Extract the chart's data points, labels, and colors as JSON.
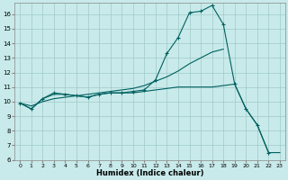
{
  "xlabel": "Humidex (Indice chaleur)",
  "bg_color": "#c8eaea",
  "grid_color": "#a0c8c8",
  "line_color": "#006060",
  "xlim_min": -0.5,
  "xlim_max": 23.5,
  "ylim_min": 6,
  "ylim_max": 16.8,
  "xticks": [
    0,
    1,
    2,
    3,
    4,
    5,
    6,
    7,
    8,
    9,
    10,
    11,
    12,
    13,
    14,
    15,
    16,
    17,
    18,
    19,
    20,
    21,
    22,
    23
  ],
  "yticks": [
    6,
    7,
    8,
    9,
    10,
    11,
    12,
    13,
    14,
    15,
    16
  ],
  "line1": {
    "x": [
      0,
      1,
      2,
      3,
      4,
      5,
      6,
      7,
      8,
      9,
      10,
      11,
      12,
      13,
      14,
      15,
      16,
      17,
      18,
      19,
      20,
      21,
      22
    ],
    "y": [
      9.9,
      9.5,
      10.2,
      10.6,
      10.5,
      10.4,
      10.3,
      10.5,
      10.6,
      10.6,
      10.7,
      10.8,
      11.5,
      13.3,
      14.4,
      16.1,
      16.2,
      16.6,
      15.3,
      11.2,
      9.5,
      8.4,
      6.5
    ]
  },
  "line2": {
    "x": [
      0,
      1,
      2,
      3,
      4,
      5,
      6,
      7,
      8,
      9,
      10,
      11,
      12,
      13,
      14,
      15,
      16,
      17,
      18
    ],
    "y": [
      9.9,
      9.7,
      10.0,
      10.2,
      10.3,
      10.4,
      10.5,
      10.6,
      10.7,
      10.8,
      10.9,
      11.1,
      11.4,
      11.7,
      12.1,
      12.6,
      13.0,
      13.4,
      13.6
    ]
  },
  "line3": {
    "x": [
      0,
      1,
      2,
      3,
      4,
      5,
      6,
      7,
      8,
      9,
      10,
      11,
      12,
      13,
      14,
      15,
      16,
      17,
      18,
      19,
      20,
      21,
      22,
      23
    ],
    "y": [
      9.9,
      9.5,
      10.2,
      10.5,
      10.5,
      10.4,
      10.3,
      10.5,
      10.6,
      10.6,
      10.6,
      10.7,
      10.8,
      10.9,
      11.0,
      11.0,
      11.0,
      11.0,
      11.1,
      11.2,
      9.5,
      8.4,
      6.5,
      6.5
    ]
  }
}
